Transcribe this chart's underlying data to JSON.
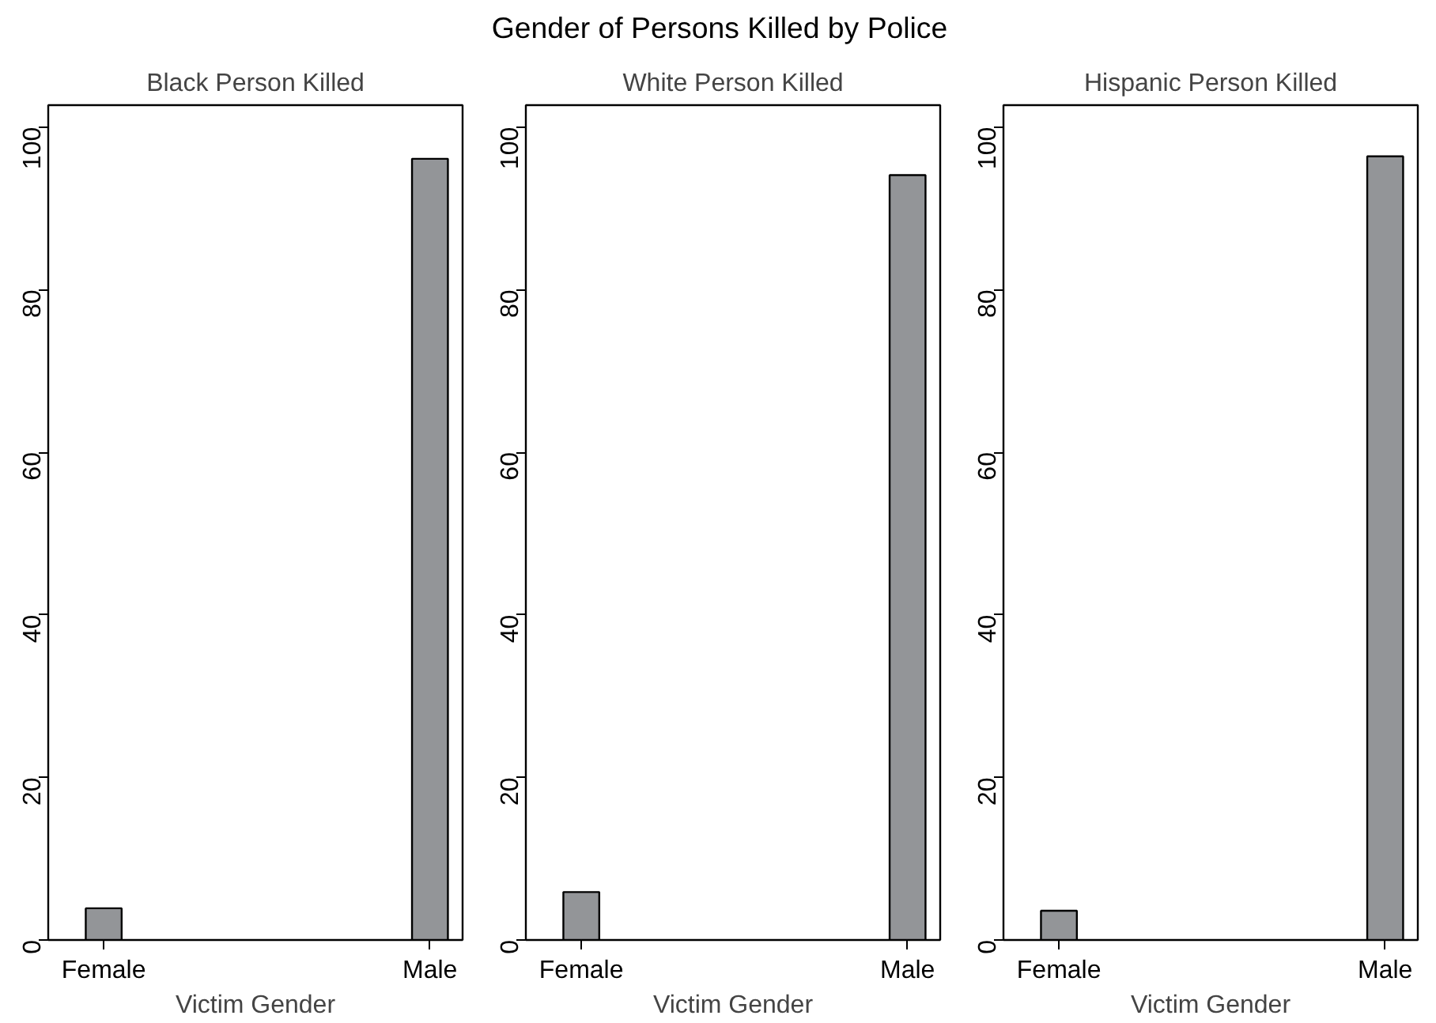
{
  "chart_data": [
    {
      "type": "bar",
      "title": "Black Person Killed",
      "annotations": [
        "Gender of Persons Killed by Police"
      ],
      "xlabel": "Victim Gender",
      "categories": [
        "Female",
        "Male"
      ],
      "values": [
        3.9,
        96.1
      ],
      "color": "#939598",
      "ylim": [
        0,
        102.7
      ],
      "yticks": [
        0,
        20,
        40,
        60,
        80,
        100
      ],
      "grid": false
    },
    {
      "type": "bar",
      "title": "White Person Killed",
      "xlabel": "Victim Gender",
      "categories": [
        "Female",
        "Male"
      ],
      "values": [
        5.9,
        94.1
      ],
      "color": "#939598",
      "ylim": [
        0,
        102.7
      ],
      "yticks": [
        0,
        20,
        40,
        60,
        80,
        100
      ],
      "grid": false
    },
    {
      "type": "bar",
      "title": "Hispanic Person Killed",
      "xlabel": "Victim Gender",
      "categories": [
        "Female",
        "Male"
      ],
      "values": [
        3.6,
        96.4
      ],
      "color": "#939598",
      "ylim": [
        0,
        102.7
      ],
      "yticks": [
        0,
        20,
        40,
        60,
        80,
        100
      ],
      "grid": false
    }
  ]
}
